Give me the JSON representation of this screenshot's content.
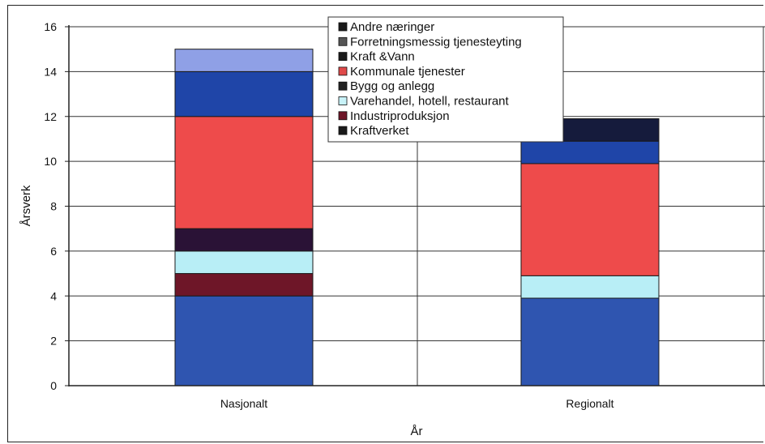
{
  "chart_data": {
    "type": "bar",
    "stacked": true,
    "categories": [
      "Nasjonalt",
      "Regionalt"
    ],
    "xlabel": "År",
    "ylabel": "Årsverk",
    "ylim": [
      0,
      16
    ],
    "yticks": [
      0,
      2,
      4,
      6,
      8,
      10,
      12,
      14,
      16
    ],
    "grid": true,
    "legend_position": "top-center",
    "series": [
      {
        "name": "Kraftverket",
        "values": [
          4,
          3.9
        ],
        "color": "#2f55b0"
      },
      {
        "name": "Industriproduksjon",
        "values": [
          1,
          0
        ],
        "color": "#6e1628"
      },
      {
        "name": "Varehandel, hotell, restaurant",
        "values": [
          1,
          1
        ],
        "color": "#b8eef6"
      },
      {
        "name": "Bygg og anlegg",
        "values": [
          1,
          0
        ],
        "color": "#2a1236"
      },
      {
        "name": "Kommunale tjenester",
        "values": [
          5,
          5
        ],
        "color": "#ee4b4b"
      },
      {
        "name": "Kraft &Vann",
        "values": [
          2,
          1
        ],
        "color": "#1f45a8"
      },
      {
        "name": "Forretningsmessig tjenesteyting",
        "values": [
          1,
          0
        ],
        "color": "#8fa0e6"
      },
      {
        "name": "Andre næringer",
        "values": [
          0,
          1
        ],
        "color": "#151b3c"
      }
    ],
    "legend_order": [
      "Andre næringer",
      "Forretningsmessig tjenesteyting",
      "Kraft &Vann",
      "Kommunale tjenester",
      "Bygg og anlegg",
      "Varehandel, hotell, restaurant",
      "Industriproduksjon",
      "Kraftverket"
    ],
    "legend_swatches": {
      "Andre næringer": "#1a1a1a",
      "Forretningsmessig tjenesteyting": "#555555",
      "Kraft &Vann": "#1a1a1a",
      "Kommunale tjenester": "#e04a4a",
      "Bygg og anlegg": "#222222",
      "Varehandel, hotell, restaurant": "#c8f2f8",
      "Industriproduksjon": "#6e1628",
      "Kraftverket": "#1a1a1a"
    }
  }
}
